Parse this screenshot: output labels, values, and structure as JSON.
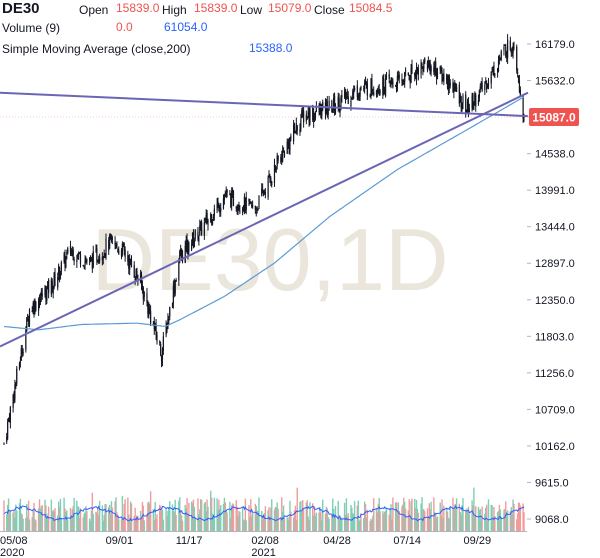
{
  "header": {
    "symbol": "DE30",
    "open_label": "Open",
    "open": "15839.0",
    "high_label": "High",
    "high": "15839.0",
    "low_label": "Low",
    "low": "15079.0",
    "close_label": "Close",
    "close": "15084.5",
    "volume_label": "Volume (9)",
    "volume_ma": "0.0",
    "volume": "61054.0",
    "sma_label": "Simple Moving Average (close,200)",
    "sma_value": "15388.0"
  },
  "watermark": "DE30,1D",
  "last_price_badge": "15087.0",
  "colors": {
    "up": "#26a69a",
    "down": "#ef5350",
    "candle": "#131722",
    "sma": "#5b9bd5",
    "trendline": "#6a66b5",
    "volume_ma": "#2962ff",
    "badge": "#ef5350",
    "watermark": "#e8e3d8"
  },
  "chart_data": {
    "type": "candlestick",
    "symbol": "DE30",
    "timeframe": "1D",
    "y_ticks": [
      16179.0,
      15632.0,
      15087.0,
      14538.0,
      13991.0,
      13444.0,
      12897.0,
      12350.0,
      11803.0,
      11256.0,
      10709.0,
      10162.0,
      9615.0,
      9068.0
    ],
    "x_ticks": [
      "05/08",
      "09/01",
      "11/17",
      "02/08",
      "04/28",
      "07/14",
      "09/29"
    ],
    "x_ticks_sub": [
      "2020",
      "",
      "",
      "2021",
      "",
      "",
      ""
    ],
    "ylim": [
      9068.0,
      16500.0
    ],
    "price_path": [
      [
        "2020-05-08",
        10200
      ],
      [
        "2020-06-05",
        12200
      ],
      [
        "2020-07-01",
        12600
      ],
      [
        "2020-07-20",
        13100
      ],
      [
        "2020-08-10",
        12900
      ],
      [
        "2020-09-01",
        13200
      ],
      [
        "2020-09-15",
        13100
      ],
      [
        "2020-10-05",
        12600
      ],
      [
        "2020-10-28",
        11550
      ],
      [
        "2020-11-17",
        13000
      ],
      [
        "2020-12-10",
        13400
      ],
      [
        "2021-01-05",
        13900
      ],
      [
        "2021-02-08",
        13700
      ],
      [
        "2021-03-01",
        14300
      ],
      [
        "2021-04-01",
        15100
      ],
      [
        "2021-04-28",
        15200
      ],
      [
        "2021-06-01",
        15500
      ],
      [
        "2021-07-14",
        15600
      ],
      [
        "2021-08-15",
        15900
      ],
      [
        "2021-09-10",
        15600
      ],
      [
        "2021-09-29",
        15200
      ],
      [
        "2021-10-15",
        15500
      ],
      [
        "2021-11-10",
        16100
      ],
      [
        "2021-11-19",
        16200
      ],
      [
        "2021-11-30",
        15084.5
      ]
    ],
    "sma200": [
      [
        "2020-05-08",
        11950
      ],
      [
        "2020-06-15",
        11900
      ],
      [
        "2020-08-01",
        11980
      ],
      [
        "2020-10-01",
        12000
      ],
      [
        "2020-11-01",
        11950
      ],
      [
        "2020-11-17",
        12050
      ],
      [
        "2021-01-05",
        12400
      ],
      [
        "2021-03-01",
        12900
      ],
      [
        "2021-05-01",
        13600
      ],
      [
        "2021-07-14",
        14300
      ],
      [
        "2021-09-29",
        14900
      ],
      [
        "2021-11-30",
        15388
      ]
    ],
    "trendline_support": [
      [
        "2020-05-08",
        11650
      ],
      [
        "2021-11-30",
        15450
      ]
    ],
    "trendline_resistance": [
      [
        "2020-05-08",
        15450
      ],
      [
        "2021-11-30",
        15100
      ]
    ],
    "last_close": 15084.5
  }
}
